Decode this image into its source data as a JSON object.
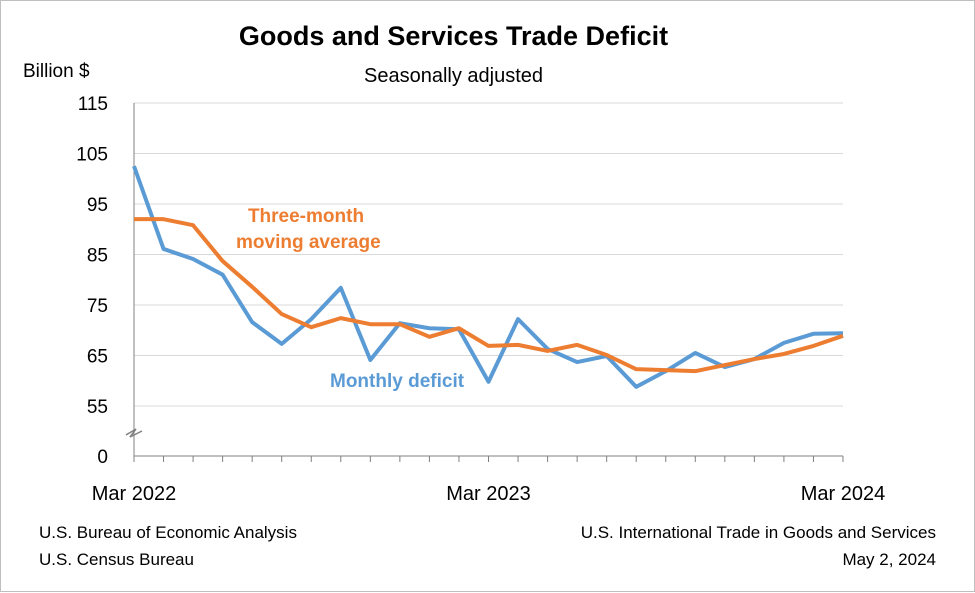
{
  "chart_data": {
    "type": "line",
    "title": "Goods and Services Trade Deficit",
    "subtitle": "Seasonally adjusted",
    "ylabel": "Billion $",
    "xlabel": "",
    "y_ticks": [
      0,
      55,
      65,
      75,
      85,
      95,
      105,
      115
    ],
    "ylim": [
      0,
      115
    ],
    "y_axis_break": [
      0,
      55
    ],
    "x_tick_labels": [
      "Mar 2022",
      "Mar 2023",
      "Mar 2024"
    ],
    "x": [
      "Mar 2022",
      "Apr 2022",
      "May 2022",
      "Jun 2022",
      "Jul 2022",
      "Aug 2022",
      "Sep 2022",
      "Oct 2022",
      "Nov 2022",
      "Dec 2022",
      "Jan 2023",
      "Feb 2023",
      "Mar 2023",
      "Apr 2023",
      "May 2023",
      "Jun 2023",
      "Jul 2023",
      "Aug 2023",
      "Sep 2023",
      "Oct 2023",
      "Nov 2023",
      "Dec 2023",
      "Jan 2024",
      "Feb 2024",
      "Mar 2024"
    ],
    "grid": "horizontal",
    "series": [
      {
        "name": "Monthly deficit",
        "color": "#5b9bd5",
        "values": [
          102.5,
          86.1,
          84.1,
          81.0,
          71.6,
          67.3,
          72.2,
          78.4,
          64.1,
          71.4,
          70.4,
          70.2,
          59.8,
          72.2,
          66.3,
          63.7,
          64.9,
          58.8,
          61.9,
          65.5,
          62.7,
          64.3,
          67.5,
          69.3,
          69.4
        ]
      },
      {
        "name": "Three-month moving average",
        "color": "#ed7d31",
        "values": [
          92.0,
          92.0,
          90.8,
          83.7,
          78.6,
          73.2,
          70.6,
          72.4,
          71.2,
          71.2,
          68.7,
          70.4,
          66.9,
          67.1,
          65.9,
          67.1,
          65.1,
          62.3,
          62.1,
          61.9,
          63.1,
          64.3,
          65.3,
          66.9,
          68.9
        ]
      }
    ]
  },
  "annotations": {
    "orange_label_line1": "Three-month",
    "orange_label_line2": "moving average",
    "blue_label": "Monthly deficit"
  },
  "footer": {
    "left_line1": "U.S. Bureau of Economic Analysis",
    "left_line2": "U.S. Census Bureau",
    "right_line1": "U.S. International Trade in Goods and Services",
    "right_line2": "May 2, 2024"
  }
}
